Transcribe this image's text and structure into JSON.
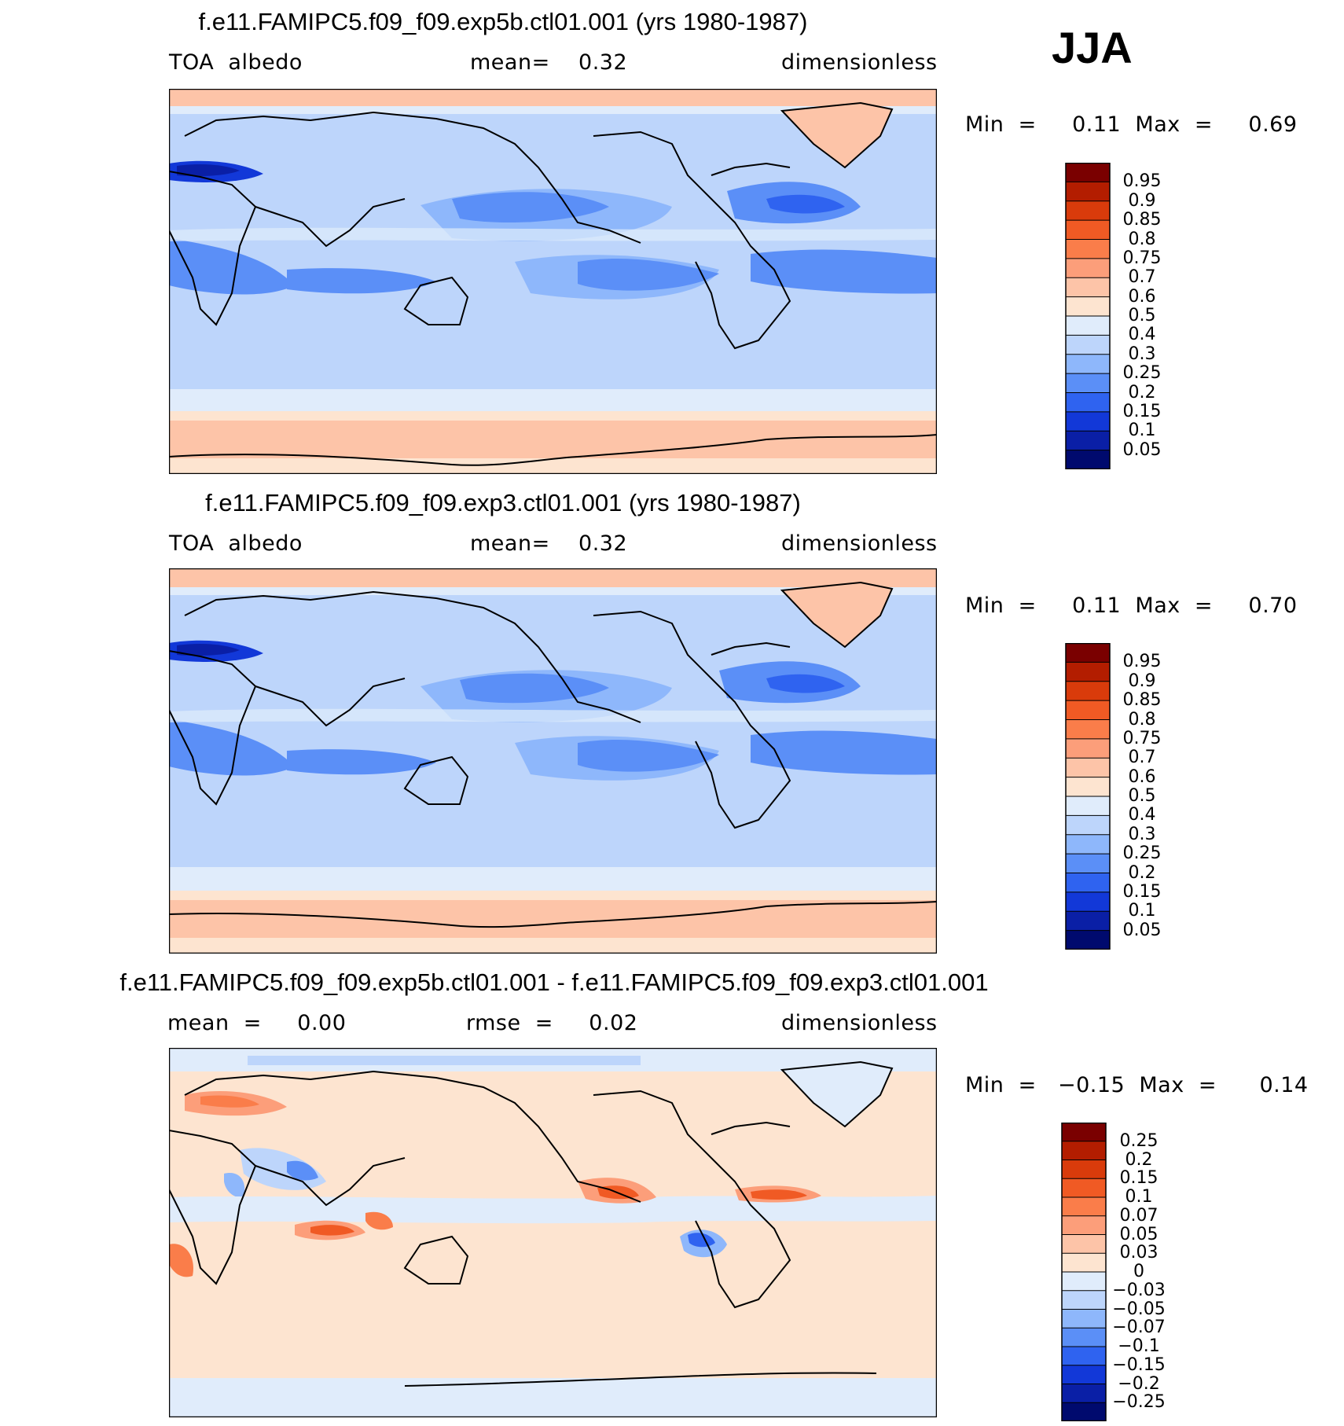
{
  "season": "JJA",
  "panels": [
    {
      "title": "f.e11.FAMIPC5.f09_f09.exp5b.ctl01.001 (yrs 1980-1987)",
      "left_label": "TOA  albedo",
      "center_label": "mean=    0.32",
      "right_label": "dimensionless",
      "minmax": "Min  =     0.11  Max  =     0.69",
      "field": "absolute",
      "colorbar": {
        "labels": [
          "0.95",
          "0.9",
          "0.85",
          "0.8",
          "0.75",
          "0.7",
          "0.6",
          "0.5",
          "0.4",
          "0.3",
          "0.25",
          "0.2",
          "0.15",
          "0.1",
          "0.05"
        ],
        "colors": [
          "#7a0000",
          "#b31d00",
          "#d93b0b",
          "#f05a24",
          "#fa7d4a",
          "#fc9e7a",
          "#fdc4a8",
          "#fde4d0",
          "#e0ecfb",
          "#bdd5fb",
          "#8eb7fb",
          "#5b8ff7",
          "#2f63f0",
          "#1238d8",
          "#0a1fa6",
          "#000a6e"
        ]
      }
    },
    {
      "title": "f.e11.FAMIPC5.f09_f09.exp3.ctl01.001 (yrs 1980-1987)",
      "left_label": "TOA  albedo",
      "center_label": "mean=    0.32",
      "right_label": "dimensionless",
      "minmax": "Min  =     0.11  Max  =     0.70",
      "field": "absolute",
      "colorbar": {
        "labels": [
          "0.95",
          "0.9",
          "0.85",
          "0.8",
          "0.75",
          "0.7",
          "0.6",
          "0.5",
          "0.4",
          "0.3",
          "0.25",
          "0.2",
          "0.15",
          "0.1",
          "0.05"
        ],
        "colors": [
          "#7a0000",
          "#b31d00",
          "#d93b0b",
          "#f05a24",
          "#fa7d4a",
          "#fc9e7a",
          "#fdc4a8",
          "#fde4d0",
          "#e0ecfb",
          "#bdd5fb",
          "#8eb7fb",
          "#5b8ff7",
          "#2f63f0",
          "#1238d8",
          "#0a1fa6",
          "#000a6e"
        ]
      }
    },
    {
      "title": "f.e11.FAMIPC5.f09_f09.exp5b.ctl01.001 - f.e11.FAMIPC5.f09_f09.exp3.ctl01.001",
      "left_label": "mean  =     0.00",
      "center_label": "rmse  =     0.02",
      "right_label": "dimensionless",
      "minmax": "Min  =   −0.15  Max  =      0.14",
      "field": "difference",
      "colorbar": {
        "labels": [
          "0.25",
          "0.2",
          "0.15",
          "0.1",
          "0.07",
          "0.05",
          "0.03",
          "0",
          "−0.03",
          "−0.05",
          "−0.07",
          "−0.1",
          "−0.15",
          "−0.2",
          "−0.25"
        ],
        "colors": [
          "#7a0000",
          "#b31d00",
          "#d93b0b",
          "#f05a24",
          "#fa7d4a",
          "#fc9e7a",
          "#fdc4a8",
          "#fde4d0",
          "#e0ecfb",
          "#bdd5fb",
          "#8eb7fb",
          "#5b8ff7",
          "#2f63f0",
          "#1238d8",
          "#0a1fa6",
          "#000a6e"
        ]
      }
    }
  ]
}
